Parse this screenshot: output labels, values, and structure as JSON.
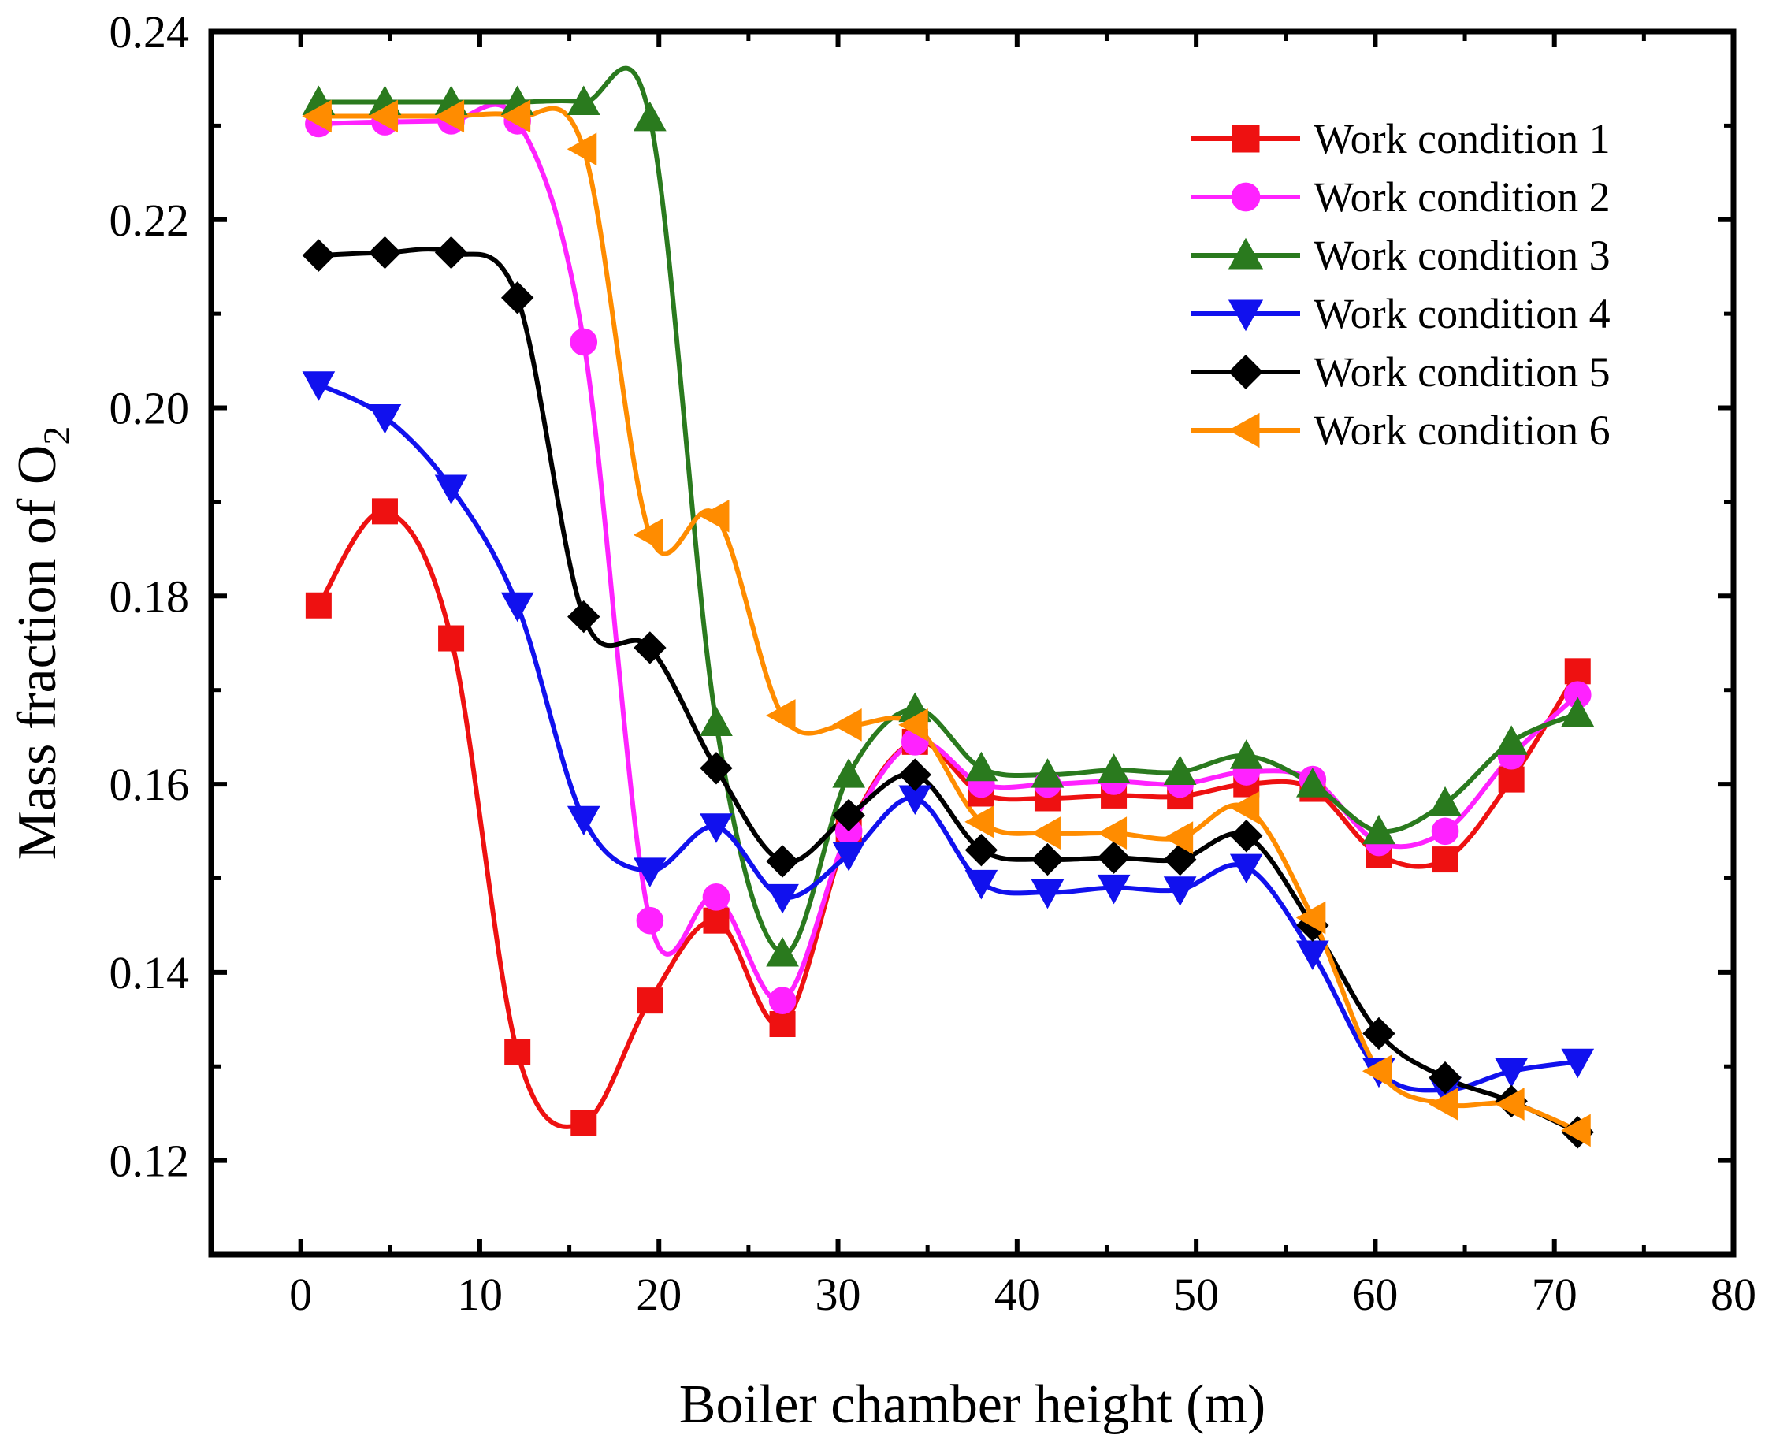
{
  "chart_data": {
    "type": "line",
    "xlabel": "Boiler chamber height (m)",
    "ylabel": "Mass fraction of O",
    "ylabel_subscript": "2",
    "xlim": [
      -5,
      80
    ],
    "ylim": [
      0.11,
      0.24
    ],
    "xticks": [
      "0",
      "10",
      "20",
      "30",
      "40",
      "50",
      "60",
      "70",
      "80"
    ],
    "xtick_values": [
      0,
      10,
      20,
      30,
      40,
      50,
      60,
      70,
      80
    ],
    "yticks": [
      "0.12",
      "0.14",
      "0.16",
      "0.18",
      "0.20",
      "0.22",
      "0.24"
    ],
    "ytick_values": [
      0.12,
      0.14,
      0.16,
      0.18,
      0.2,
      0.22,
      0.24
    ],
    "legend_position": "top-right",
    "x": [
      1,
      4.7,
      8.4,
      12.1,
      15.8,
      19.5,
      23.2,
      26.9,
      30.6,
      34.3,
      38,
      41.7,
      45.4,
      49.1,
      52.8,
      56.5,
      60.2,
      63.9,
      67.6,
      71.3
    ],
    "series": [
      {
        "name": "Work condition 1",
        "color": "#ee1111",
        "marker": "square",
        "values": [
          0.179,
          0.189,
          0.1755,
          0.1315,
          0.124,
          0.137,
          0.1455,
          0.1345,
          0.155,
          0.1645,
          0.159,
          0.1585,
          0.1588,
          0.1587,
          0.16,
          0.1595,
          0.1525,
          0.152,
          0.1605,
          0.172
        ]
      },
      {
        "name": "Work condition 2",
        "color": "#ff22ff",
        "marker": "circle",
        "values": [
          0.2302,
          0.2304,
          0.2305,
          0.2305,
          0.207,
          0.1455,
          0.148,
          0.137,
          0.155,
          0.1645,
          0.16,
          0.16,
          0.1603,
          0.16,
          0.1613,
          0.1605,
          0.1538,
          0.155,
          0.163,
          0.1695
        ]
      },
      {
        "name": "Work condition 3",
        "color": "#2a7a1e",
        "marker": "triangle-up",
        "values": [
          0.2325,
          0.2325,
          0.2325,
          0.2325,
          0.2325,
          0.2308,
          0.1665,
          0.142,
          0.161,
          0.168,
          0.1617,
          0.161,
          0.1615,
          0.1613,
          0.163,
          0.16,
          0.155,
          0.158,
          0.1645,
          0.1675
        ]
      },
      {
        "name": "Work condition 4",
        "color": "#1111ee",
        "marker": "triangle-down",
        "values": [
          0.2025,
          0.199,
          0.1915,
          0.179,
          0.1563,
          0.1508,
          0.1555,
          0.148,
          0.1525,
          0.1585,
          0.1495,
          0.1485,
          0.149,
          0.1488,
          0.1512,
          0.142,
          0.1295,
          0.1275,
          0.1295,
          0.1305
        ]
      },
      {
        "name": "Work condition 5",
        "color": "#000000",
        "marker": "diamond",
        "values": [
          0.2162,
          0.2165,
          0.2165,
          0.2117,
          0.1778,
          0.1745,
          0.1617,
          0.1518,
          0.1567,
          0.161,
          0.153,
          0.152,
          0.1522,
          0.152,
          0.1545,
          0.145,
          0.1335,
          0.1288,
          0.1263,
          0.123
        ]
      },
      {
        "name": "Work condition 6",
        "color": "#ff8c00",
        "marker": "triangle-left",
        "values": [
          0.231,
          0.231,
          0.231,
          0.231,
          0.2275,
          0.1865,
          0.1885,
          0.1673,
          0.1663,
          0.1663,
          0.156,
          0.1548,
          0.1548,
          0.1543,
          0.1575,
          0.1458,
          0.1295,
          0.126,
          0.126,
          0.1232
        ]
      }
    ]
  }
}
